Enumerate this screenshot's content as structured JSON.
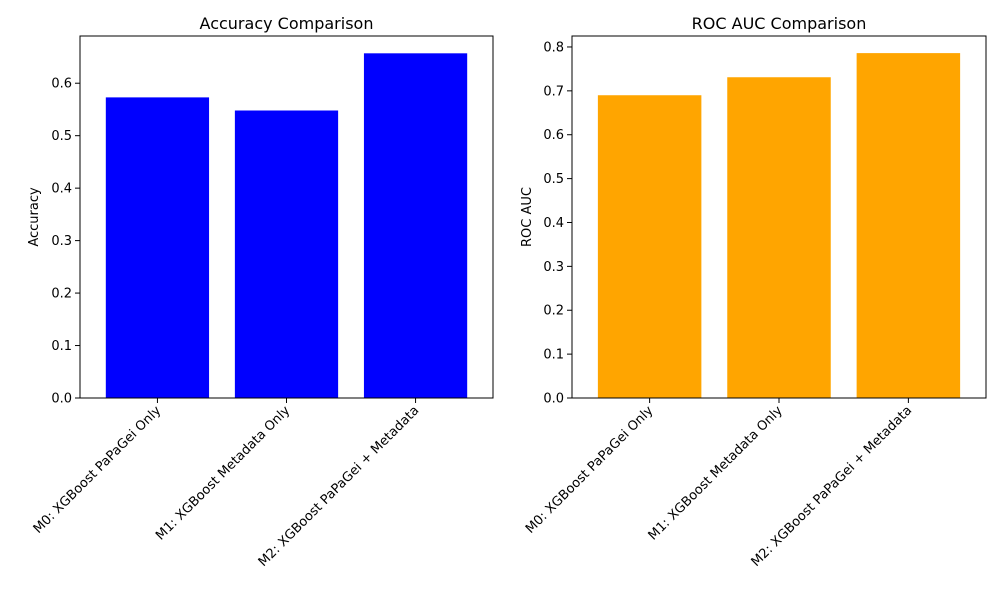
{
  "chart_data": [
    {
      "type": "bar",
      "title": "Accuracy Comparison",
      "xlabel": "",
      "ylabel": "Accuracy",
      "categories": [
        "M0: XGBoost PaPaGei Only",
        "M1: XGBoost Metadata Only",
        "M2: XGBoost PaPaGei + Metadata"
      ],
      "values": [
        0.573,
        0.548,
        0.657
      ],
      "ylim": [
        0,
        0.69
      ],
      "yticks": [
        "0.0",
        "0.1",
        "0.2",
        "0.3",
        "0.4",
        "0.5",
        "0.6"
      ],
      "color": "#0000ff",
      "grid": false,
      "legend": "none"
    },
    {
      "type": "bar",
      "title": "ROC AUC Comparison",
      "xlabel": "",
      "ylabel": "ROC AUC",
      "categories": [
        "M0: XGBoost PaPaGei Only",
        "M1: XGBoost Metadata Only",
        "M2: XGBoost PaPaGei + Metadata"
      ],
      "values": [
        0.69,
        0.731,
        0.786
      ],
      "ylim": [
        0,
        0.825
      ],
      "yticks": [
        "0.0",
        "0.1",
        "0.2",
        "0.3",
        "0.4",
        "0.5",
        "0.6",
        "0.7",
        "0.8"
      ],
      "color": "#ffa500",
      "grid": false,
      "legend": "none"
    }
  ]
}
